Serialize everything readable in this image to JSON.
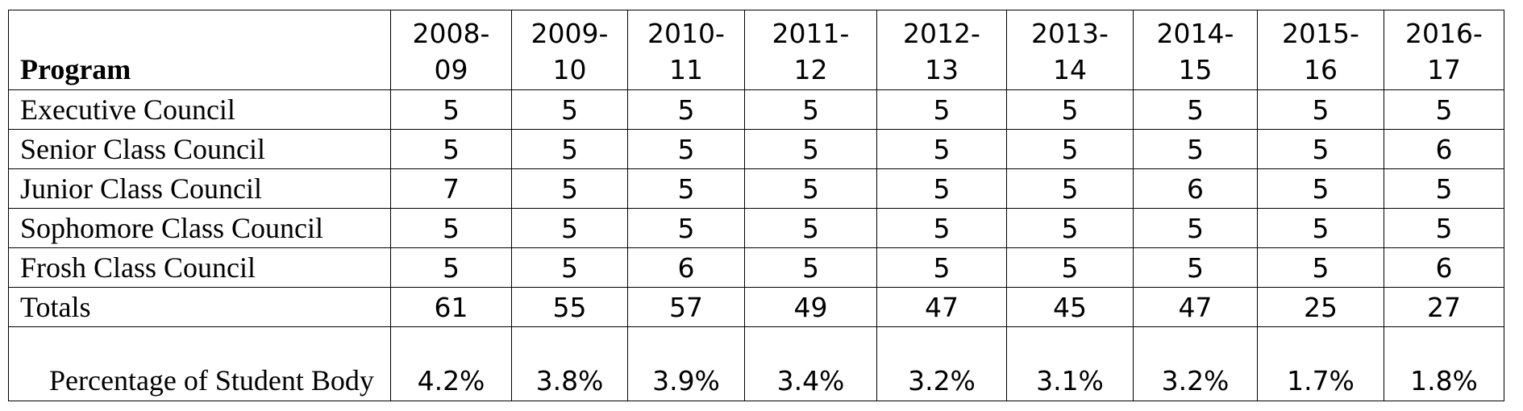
{
  "table": {
    "header": {
      "label": "Program",
      "years": [
        "2008-09",
        "2009-10",
        "2010-11",
        "2011-12",
        "2012-13",
        "2013-14",
        "2014-15",
        "2015-16",
        "2016-17"
      ]
    },
    "rows": [
      {
        "label": "Executive Council",
        "values": [
          "5",
          "5",
          "5",
          "5",
          "5",
          "5",
          "5",
          "5",
          "5"
        ]
      },
      {
        "label": "Senior Class Council",
        "values": [
          "5",
          "5",
          "5",
          "5",
          "5",
          "5",
          "5",
          "5",
          "6"
        ]
      },
      {
        "label": "Junior Class Council",
        "values": [
          "7",
          "5",
          "5",
          "5",
          "5",
          "5",
          "6",
          "5",
          "5"
        ]
      },
      {
        "label": "Sophomore Class Council",
        "values": [
          "5",
          "5",
          "5",
          "5",
          "5",
          "5",
          "5",
          "5",
          "5"
        ]
      },
      {
        "label": "Frosh Class Council",
        "values": [
          "5",
          "5",
          "6",
          "5",
          "5",
          "5",
          "5",
          "5",
          "6"
        ]
      },
      {
        "label": "Totals",
        "values": [
          "61",
          "55",
          "57",
          "49",
          "47",
          "45",
          "47",
          "25",
          "27"
        ]
      },
      {
        "label": "Percentage of Student Body",
        "values": [
          "4.2%",
          "3.8%",
          "3.9%",
          "3.4%",
          "3.2%",
          "3.1%",
          "3.2%",
          "1.7%",
          "1.8%"
        ]
      }
    ]
  }
}
